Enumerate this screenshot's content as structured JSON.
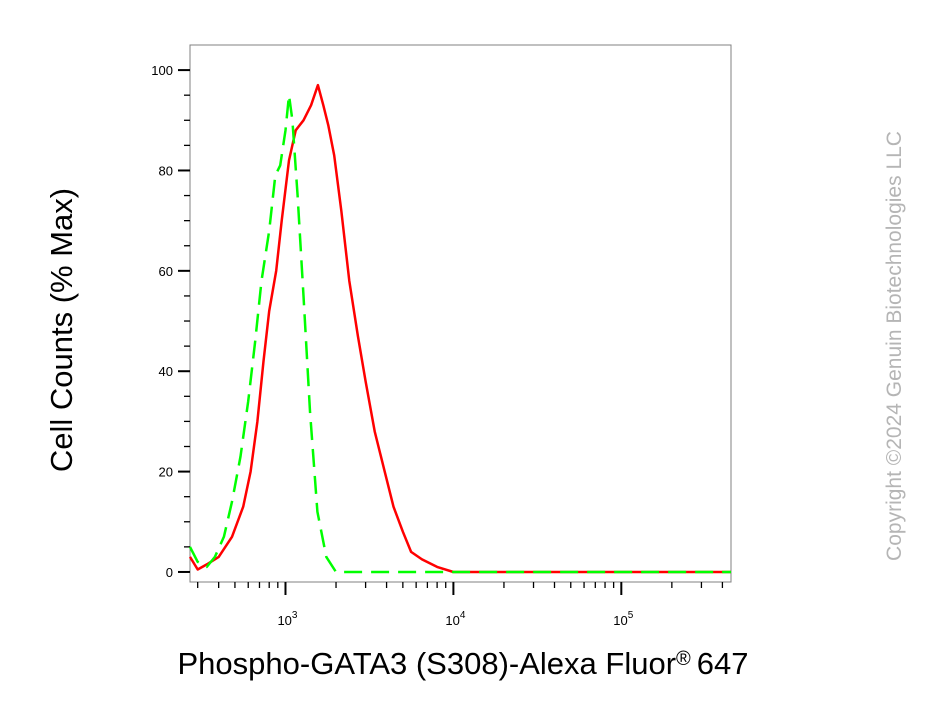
{
  "chart_data": {
    "type": "line",
    "xlabel": "Phospho-GATA3 (S308)-Alexa Fluor",
    "xlabel_mark": "®",
    "xlabel_suffix": "647",
    "ylabel": "Cell Counts (% Max)",
    "x_scale": "log",
    "xlim": [
      270,
      450000
    ],
    "ylim": [
      -2,
      105
    ],
    "y_ticks": [
      0,
      20,
      40,
      60,
      80,
      100
    ],
    "x_ticks": [
      {
        "value": 1000,
        "base": "10",
        "exp": "3"
      },
      {
        "value": 10000,
        "base": "10",
        "exp": "4"
      },
      {
        "value": 100000,
        "base": "10",
        "exp": "5"
      }
    ],
    "series": [
      {
        "color": "#ff0000",
        "style": "solid",
        "points": [
          [
            270,
            3
          ],
          [
            300,
            0.5
          ],
          [
            340,
            1.5
          ],
          [
            400,
            3
          ],
          [
            480,
            7
          ],
          [
            560,
            13
          ],
          [
            620,
            20
          ],
          [
            680,
            30
          ],
          [
            740,
            42
          ],
          [
            800,
            52
          ],
          [
            880,
            60
          ],
          [
            950,
            70
          ],
          [
            1050,
            82
          ],
          [
            1150,
            88
          ],
          [
            1280,
            90
          ],
          [
            1420,
            93
          ],
          [
            1560,
            97
          ],
          [
            1680,
            93
          ],
          [
            1800,
            89
          ],
          [
            1950,
            83
          ],
          [
            2150,
            72
          ],
          [
            2400,
            58
          ],
          [
            2700,
            47
          ],
          [
            3000,
            38
          ],
          [
            3400,
            28
          ],
          [
            3900,
            20
          ],
          [
            4400,
            13
          ],
          [
            5000,
            8
          ],
          [
            5600,
            4
          ],
          [
            6500,
            2.5
          ],
          [
            8000,
            1
          ],
          [
            10000,
            0
          ],
          [
            50000,
            0
          ],
          [
            450000,
            0
          ]
        ]
      },
      {
        "color": "#00ff00",
        "style": "dashed",
        "points": [
          [
            270,
            5
          ],
          [
            300,
            2
          ],
          [
            340,
            1
          ],
          [
            380,
            3
          ],
          [
            430,
            7
          ],
          [
            480,
            14
          ],
          [
            540,
            23
          ],
          [
            600,
            34
          ],
          [
            660,
            46
          ],
          [
            720,
            58
          ],
          [
            800,
            68
          ],
          [
            870,
            79
          ],
          [
            930,
            81
          ],
          [
            1000,
            88
          ],
          [
            1050,
            95
          ],
          [
            1100,
            90
          ],
          [
            1180,
            75
          ],
          [
            1280,
            55
          ],
          [
            1400,
            32
          ],
          [
            1550,
            12
          ],
          [
            1750,
            3
          ],
          [
            2000,
            0
          ],
          [
            3000,
            0
          ],
          [
            450000,
            0
          ]
        ]
      }
    ],
    "watermark": "Copyright ©2024 Genuin Biotechnologies LLC"
  }
}
